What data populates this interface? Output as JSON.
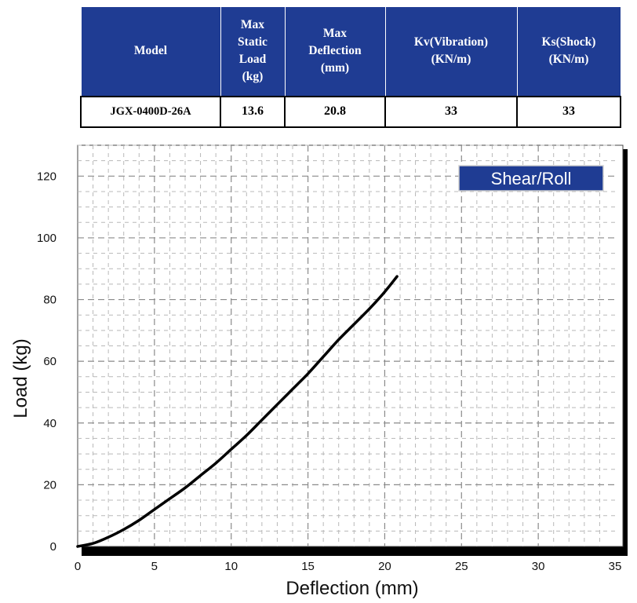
{
  "table": {
    "headers": [
      [
        "Model"
      ],
      [
        "Max",
        "Static",
        "Load",
        "(kg)"
      ],
      [
        "Max",
        "Deflection",
        "(mm)"
      ],
      [
        "Kv(Vibration)",
        "(KN/m)"
      ],
      [
        "Ks(Shock)",
        "(KN/m)"
      ]
    ],
    "row": {
      "model": "JGX-0400D-26A",
      "max_static_load": "13.6",
      "max_deflection": "20.8",
      "kv": "33",
      "ks": "33"
    },
    "colors": {
      "header_bg": "#1f3c93",
      "header_text": "#ffffff"
    }
  },
  "chart_data": {
    "type": "line",
    "xlabel": "Deflection (mm)",
    "ylabel": "Load (kg)",
    "xlim": [
      0,
      35
    ],
    "ylim": [
      0,
      130
    ],
    "xticks": [
      0,
      5,
      10,
      15,
      20,
      25,
      30,
      35
    ],
    "yticks": [
      0,
      20,
      40,
      60,
      80,
      100,
      120
    ],
    "grid": true,
    "legend": {
      "label": "Shear/Roll",
      "placement": "top-right",
      "bg": "#1f3c93"
    },
    "series": [
      {
        "name": "Shear/Roll",
        "x": [
          0,
          1,
          2,
          3,
          4,
          5,
          6,
          7,
          8,
          9,
          10,
          11,
          12,
          13,
          14,
          15,
          16,
          17,
          18,
          19,
          20,
          20.8
        ],
        "y": [
          0,
          1,
          3,
          5.5,
          8.5,
          12,
          15.5,
          19,
          23,
          27,
          31.5,
          36,
          41,
          46,
          51,
          56,
          61.5,
          67,
          72,
          77,
          82.5,
          87.5
        ],
        "color": "#000000"
      }
    ]
  }
}
